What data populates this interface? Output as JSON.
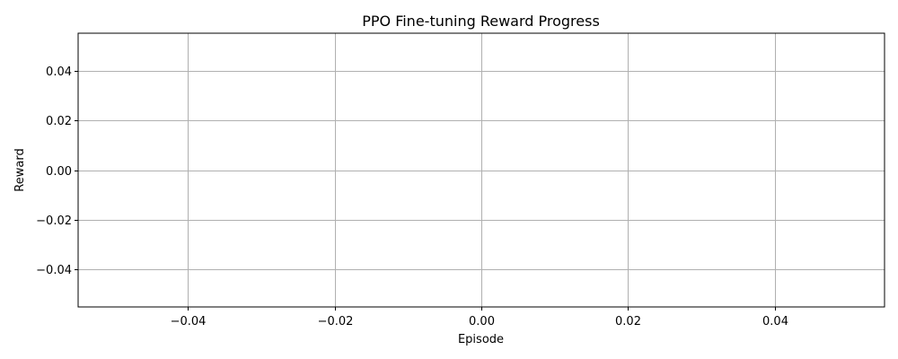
{
  "chart_data": {
    "type": "line",
    "title": "PPO Fine-tuning Reward Progress",
    "xlabel": "Episode",
    "ylabel": "Reward",
    "series": [
      {
        "x": [],
        "y": []
      }
    ],
    "xlim": [
      -0.055,
      0.055
    ],
    "ylim": [
      -0.055,
      0.055
    ],
    "xticks": [
      -0.04,
      -0.02,
      0.0,
      0.02,
      0.04
    ],
    "xtick_labels": [
      "−0.04",
      "−0.02",
      "0.00",
      "0.02",
      "0.04"
    ],
    "yticks": [
      0.04,
      0.02,
      0.0,
      -0.02,
      -0.04
    ],
    "ytick_labels": [
      "0.04",
      "0.02",
      "0.00",
      "−0.02",
      "−0.04"
    ],
    "grid": true,
    "colors": {
      "grid": "#b0b0b0",
      "axis": "#000000",
      "background": "#ffffff"
    }
  }
}
